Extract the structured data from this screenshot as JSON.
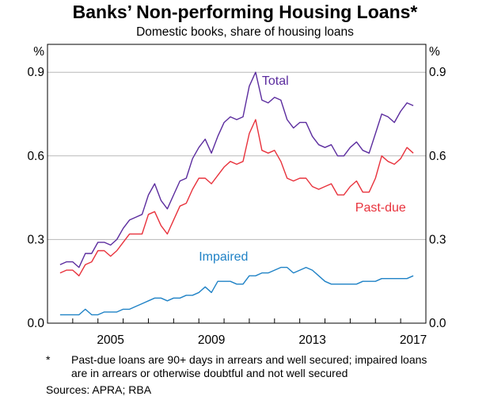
{
  "title": "Banks’ Non-performing Housing Loans*",
  "subtitle": "Domestic books, share of housing loans",
  "footnote": {
    "marker": "*",
    "text": "Past-due loans are 90+ days in arrears and well secured; impaired loans are in arrears or otherwise doubtful and not well secured"
  },
  "sources": "Sources:   APRA; RBA",
  "chart_data": {
    "type": "line",
    "ylabel_left": "%",
    "ylabel_right": "%",
    "ylim": [
      0,
      1.0
    ],
    "yticks": [
      0.0,
      0.3,
      0.6,
      0.9
    ],
    "ytick_labels": [
      "0.0",
      "0.3",
      "0.6",
      "0.9"
    ],
    "xlim": [
      2003.0,
      2018.0
    ],
    "xticks": [
      2005,
      2009,
      2013,
      2017
    ],
    "xtick_labels": [
      "2005",
      "2009",
      "2013",
      "2017"
    ],
    "grid": true,
    "series": [
      {
        "name": "Total",
        "color": "#5b2c9e",
        "x": [
          2003.5,
          2003.75,
          2004.0,
          2004.25,
          2004.5,
          2004.75,
          2005.0,
          2005.25,
          2005.5,
          2005.75,
          2006.0,
          2006.25,
          2006.5,
          2006.75,
          2007.0,
          2007.25,
          2007.5,
          2007.75,
          2008.0,
          2008.25,
          2008.5,
          2008.75,
          2009.0,
          2009.25,
          2009.5,
          2009.75,
          2010.0,
          2010.25,
          2010.5,
          2010.75,
          2011.0,
          2011.25,
          2011.5,
          2011.75,
          2012.0,
          2012.25,
          2012.5,
          2012.75,
          2013.0,
          2013.25,
          2013.5,
          2013.75,
          2014.0,
          2014.25,
          2014.5,
          2014.75,
          2015.0,
          2015.25,
          2015.5,
          2015.75,
          2016.0,
          2016.25,
          2016.5,
          2016.75,
          2017.0,
          2017.25,
          2017.5
        ],
        "values": [
          0.21,
          0.22,
          0.22,
          0.2,
          0.25,
          0.25,
          0.29,
          0.29,
          0.28,
          0.3,
          0.34,
          0.37,
          0.38,
          0.39,
          0.46,
          0.5,
          0.44,
          0.41,
          0.46,
          0.51,
          0.52,
          0.59,
          0.63,
          0.66,
          0.61,
          0.67,
          0.72,
          0.74,
          0.73,
          0.74,
          0.85,
          0.9,
          0.8,
          0.79,
          0.81,
          0.8,
          0.73,
          0.7,
          0.72,
          0.72,
          0.67,
          0.64,
          0.63,
          0.64,
          0.6,
          0.6,
          0.63,
          0.65,
          0.62,
          0.61,
          0.68,
          0.75,
          0.74,
          0.72,
          0.76,
          0.79,
          0.78
        ]
      },
      {
        "name": "Past-due",
        "color": "#e8323c",
        "x": [
          2003.5,
          2003.75,
          2004.0,
          2004.25,
          2004.5,
          2004.75,
          2005.0,
          2005.25,
          2005.5,
          2005.75,
          2006.0,
          2006.25,
          2006.5,
          2006.75,
          2007.0,
          2007.25,
          2007.5,
          2007.75,
          2008.0,
          2008.25,
          2008.5,
          2008.75,
          2009.0,
          2009.25,
          2009.5,
          2009.75,
          2010.0,
          2010.25,
          2010.5,
          2010.75,
          2011.0,
          2011.25,
          2011.5,
          2011.75,
          2012.0,
          2012.25,
          2012.5,
          2012.75,
          2013.0,
          2013.25,
          2013.5,
          2013.75,
          2014.0,
          2014.25,
          2014.5,
          2014.75,
          2015.0,
          2015.25,
          2015.5,
          2015.75,
          2016.0,
          2016.25,
          2016.5,
          2016.75,
          2017.0,
          2017.25,
          2017.5
        ],
        "values": [
          0.18,
          0.19,
          0.19,
          0.17,
          0.21,
          0.22,
          0.26,
          0.26,
          0.24,
          0.26,
          0.29,
          0.32,
          0.32,
          0.32,
          0.39,
          0.4,
          0.35,
          0.32,
          0.37,
          0.42,
          0.43,
          0.48,
          0.52,
          0.52,
          0.5,
          0.53,
          0.56,
          0.58,
          0.57,
          0.58,
          0.68,
          0.73,
          0.62,
          0.61,
          0.62,
          0.58,
          0.52,
          0.51,
          0.52,
          0.52,
          0.49,
          0.48,
          0.49,
          0.5,
          0.46,
          0.46,
          0.49,
          0.51,
          0.47,
          0.47,
          0.52,
          0.6,
          0.58,
          0.57,
          0.59,
          0.63,
          0.61
        ]
      },
      {
        "name": "Impaired",
        "color": "#1f82c6",
        "x": [
          2003.5,
          2003.75,
          2004.0,
          2004.25,
          2004.5,
          2004.75,
          2005.0,
          2005.25,
          2005.5,
          2005.75,
          2006.0,
          2006.25,
          2006.5,
          2006.75,
          2007.0,
          2007.25,
          2007.5,
          2007.75,
          2008.0,
          2008.25,
          2008.5,
          2008.75,
          2009.0,
          2009.25,
          2009.5,
          2009.75,
          2010.0,
          2010.25,
          2010.5,
          2010.75,
          2011.0,
          2011.25,
          2011.5,
          2011.75,
          2012.0,
          2012.25,
          2012.5,
          2012.75,
          2013.0,
          2013.25,
          2013.5,
          2013.75,
          2014.0,
          2014.25,
          2014.5,
          2014.75,
          2015.0,
          2015.25,
          2015.5,
          2015.75,
          2016.0,
          2016.25,
          2016.5,
          2016.75,
          2017.0,
          2017.25,
          2017.5
        ],
        "values": [
          0.03,
          0.03,
          0.03,
          0.03,
          0.05,
          0.03,
          0.03,
          0.04,
          0.04,
          0.04,
          0.05,
          0.05,
          0.06,
          0.07,
          0.08,
          0.09,
          0.09,
          0.08,
          0.09,
          0.09,
          0.1,
          0.1,
          0.11,
          0.13,
          0.11,
          0.15,
          0.15,
          0.15,
          0.14,
          0.14,
          0.17,
          0.17,
          0.18,
          0.18,
          0.19,
          0.2,
          0.2,
          0.18,
          0.19,
          0.2,
          0.19,
          0.17,
          0.15,
          0.14,
          0.14,
          0.14,
          0.14,
          0.14,
          0.15,
          0.15,
          0.15,
          0.16,
          0.16,
          0.16,
          0.16,
          0.16,
          0.17
        ]
      }
    ],
    "labels": [
      {
        "text": "Total",
        "series": 0,
        "x": 2011.5,
        "y": 0.855
      },
      {
        "text": "Past-due",
        "series": 1,
        "x": 2015.2,
        "y": 0.4
      },
      {
        "text": "Impaired",
        "series": 2,
        "x": 2009.0,
        "y": 0.225
      }
    ]
  }
}
